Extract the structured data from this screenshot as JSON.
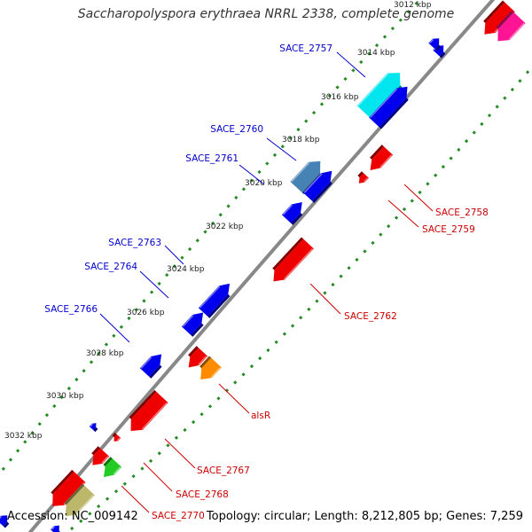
{
  "title": "Saccharopolyspora erythraea NRRL 2338, complete genome",
  "footer": {
    "accession": "Accession: NC_009142",
    "summary": "Topology: circular; Length: 8,212,805 bp; Genes: 7,259"
  },
  "colors": {
    "forward_label": "#0000cc",
    "reverse_label": "#cc0000",
    "backbone": "#888888",
    "dots": "#228b22"
  },
  "ticks": [
    {
      "label": "3012 kbp"
    },
    {
      "label": "3014 kbp"
    },
    {
      "label": "3016 kbp"
    },
    {
      "label": "3018 kbp"
    },
    {
      "label": "3020 kbp"
    },
    {
      "label": "3022 kbp"
    },
    {
      "label": "3024 kbp"
    },
    {
      "label": "3026 kbp"
    },
    {
      "label": "3028 kbp"
    },
    {
      "label": "3030 kbp"
    },
    {
      "label": "3032 kbp"
    }
  ],
  "genes_forward": [
    {
      "color": "#0000ee"
    },
    {
      "color": "#0000ee"
    },
    {
      "color": "#00e5ee",
      "label": "SACE_2757"
    },
    {
      "color": "#0000ee"
    },
    {
      "color": "#4682b4",
      "label": "SACE_2760"
    },
    {
      "color": "#0000ee",
      "label": "SACE_2761"
    },
    {
      "color": "#0000ee"
    },
    {
      "color": "#0000ee",
      "label": "SACE_2763"
    },
    {
      "color": "#0000ee",
      "label": "SACE_2764"
    },
    {
      "color": "#0000ee",
      "label": "SACE_2766"
    },
    {
      "color": "#0000ee"
    },
    {
      "color": "#0000ee"
    },
    {
      "color": "#0000ee"
    }
  ],
  "genes_reverse": [
    {
      "color": "#ee0000"
    },
    {
      "color": "#ff1493"
    },
    {
      "color": "#ee0000",
      "label": "SACE_2758"
    },
    {
      "color": "#ee0000",
      "label": "SACE_2759"
    },
    {
      "color": "#ee0000",
      "label": "SACE_2762"
    },
    {
      "color": "#ee0000"
    },
    {
      "color": "#ff8c00",
      "label": "alsR"
    },
    {
      "color": "#ee0000",
      "label": "SACE_2767"
    },
    {
      "color": "#ee0000",
      "label": "SACE_2768"
    },
    {
      "color": "#ee0000"
    },
    {
      "color": "#22cc22",
      "label": "SACE_2770"
    },
    {
      "color": "#ee0000"
    },
    {
      "color": "#bdb76b"
    }
  ]
}
